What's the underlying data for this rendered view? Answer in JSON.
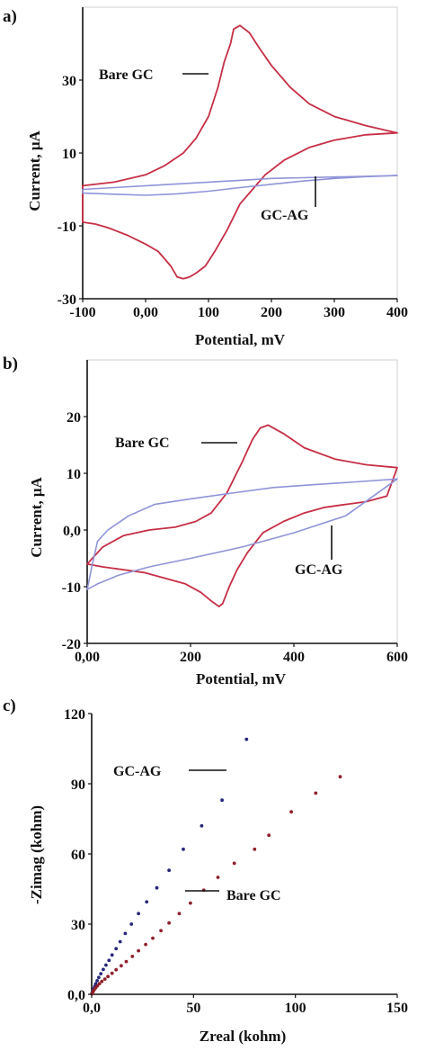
{
  "colors": {
    "bare_gc": "#c62f45",
    "gc_ag": "#8f94d8",
    "bare_gc_points": "#8f1f2a",
    "gc_ag_points": "#26277a",
    "axis": "#111111"
  },
  "chart_data": [
    {
      "panel": "a)",
      "type": "line",
      "xlabel": "Potential, mV",
      "ylabel": "Current, μA",
      "xlim": [
        -100,
        400
      ],
      "ylim": [
        -30,
        50
      ],
      "xticks": [
        "-100",
        "0,00",
        "100",
        "200",
        "300",
        "400"
      ],
      "xtick_values": [
        -100,
        0,
        100,
        200,
        300,
        400
      ],
      "yticks": [
        "30",
        "10",
        "-10",
        "-30"
      ],
      "ytick_values": [
        30,
        10,
        -10,
        -30
      ],
      "annotations": [
        {
          "text": "Bare GC",
          "series": "Bare GC",
          "target": [
            120,
            45
          ]
        },
        {
          "text": "GC-AG",
          "series": "GC-AG",
          "target": [
            260,
            0.5
          ]
        }
      ],
      "series": [
        {
          "name": "Bare GC",
          "closed": true,
          "x": [
            -100,
            -50,
            0,
            30,
            60,
            80,
            100,
            115,
            125,
            135,
            140,
            150,
            165,
            180,
            200,
            230,
            260,
            300,
            350,
            400,
            350,
            300,
            260,
            220,
            190,
            170,
            150,
            130,
            110,
            95,
            80,
            70,
            60,
            50,
            40,
            20,
            0,
            -30,
            -60,
            -80,
            -100
          ],
          "y": [
            1,
            2,
            4,
            6.5,
            10,
            14,
            20,
            28,
            35,
            40,
            44,
            45,
            43,
            39,
            34,
            28,
            23.5,
            20,
            17.5,
            15.5,
            15,
            13.5,
            11.5,
            8,
            4,
            0,
            -4,
            -11,
            -17,
            -21,
            -23,
            -24,
            -24.5,
            -24,
            -21,
            -17,
            -15,
            -12.5,
            -10.5,
            -9.5,
            -9
          ]
        },
        {
          "name": "GC-AG",
          "closed": true,
          "x": [
            -100,
            -50,
            0,
            50,
            100,
            150,
            200,
            250,
            300,
            350,
            400,
            350,
            300,
            250,
            200,
            150,
            100,
            50,
            0,
            -50,
            -100
          ],
          "y": [
            0,
            0.5,
            1,
            1.5,
            2,
            2.5,
            3,
            3.2,
            3.4,
            3.6,
            3.8,
            3.5,
            3,
            2.3,
            1.4,
            0.5,
            -0.5,
            -1.2,
            -1.6,
            -1.3,
            -1
          ]
        }
      ]
    },
    {
      "panel": "b)",
      "type": "line",
      "xlabel": "Potential, mV",
      "ylabel": "Current, μA",
      "xlim": [
        0,
        600
      ],
      "ylim": [
        -20,
        30
      ],
      "xticks": [
        "0,00",
        "200",
        "400",
        "600"
      ],
      "xtick_values": [
        0,
        200,
        400,
        600
      ],
      "yticks": [
        "20",
        "10",
        "0,0",
        "-10",
        "-20"
      ],
      "ytick_values": [
        20,
        10,
        0,
        -10,
        -20
      ],
      "annotations": [
        {
          "text": "Bare GC",
          "series": "Bare GC",
          "target": [
            300,
            15.5
          ]
        },
        {
          "text": "GC-AG",
          "series": "GC-AG",
          "target": [
            470,
            2.5
          ]
        }
      ],
      "series": [
        {
          "name": "Bare GC",
          "closed": true,
          "x": [
            0,
            30,
            70,
            120,
            170,
            210,
            240,
            270,
            300,
            320,
            335,
            350,
            380,
            420,
            480,
            540,
            600,
            580,
            540,
            500,
            460,
            420,
            380,
            340,
            310,
            290,
            275,
            262,
            255,
            240,
            220,
            190,
            150,
            110,
            70,
            30,
            0
          ],
          "y": [
            -6,
            -3,
            -1,
            0,
            0.5,
            1.5,
            3,
            6.5,
            12,
            16,
            18,
            18.5,
            17,
            14.5,
            12.5,
            11.5,
            11,
            6,
            5,
            4.5,
            4,
            3,
            1.5,
            -0.5,
            -4,
            -7,
            -10,
            -13,
            -13.5,
            -12.5,
            -11,
            -9.5,
            -8.5,
            -7.5,
            -7,
            -6.5,
            -6
          ]
        },
        {
          "name": "GC-AG",
          "closed": true,
          "x": [
            0,
            10,
            20,
            40,
            80,
            130,
            200,
            280,
            360,
            440,
            520,
            600,
            500,
            400,
            300,
            200,
            120,
            60,
            20,
            0
          ],
          "y": [
            -10.5,
            -6,
            -2,
            0,
            2.5,
            4.5,
            5.5,
            6.5,
            7.5,
            8,
            8.5,
            9,
            2.5,
            -0.5,
            -3,
            -5,
            -6.5,
            -8,
            -9.5,
            -10.5
          ]
        }
      ]
    },
    {
      "panel": "c)",
      "type": "scatter",
      "xlabel": "Zreal (kohm)",
      "ylabel": "-Zimag (kohm)",
      "xlim": [
        0,
        150
      ],
      "ylim": [
        0,
        120
      ],
      "xticks": [
        "0,0",
        "50",
        "100",
        "150"
      ],
      "xtick_values": [
        0,
        50,
        100,
        150
      ],
      "yticks": [
        "120",
        "90",
        "60",
        "30",
        "0,0"
      ],
      "ytick_values": [
        120,
        90,
        60,
        30,
        0
      ],
      "annotations": [
        {
          "text": "GC-AG",
          "series": "GC-AG",
          "target": [
            63,
            109
          ]
        },
        {
          "text": "Bare GC",
          "series": "Bare GC",
          "target": [
            36,
            47
          ]
        }
      ],
      "series": [
        {
          "name": "GC-AG",
          "x": [
            0.1,
            0.3,
            0.6,
            1,
            1.5,
            2,
            2.7,
            3.5,
            4.5,
            5.7,
            7,
            8.5,
            10,
            12,
            14,
            16.5,
            19.5,
            23,
            27,
            32,
            38,
            45,
            54,
            64,
            76
          ],
          "y": [
            0.3,
            0.8,
            1.5,
            2.4,
            3.4,
            4.5,
            5.8,
            7.2,
            8.8,
            10.6,
            12.5,
            14.5,
            16.8,
            19.5,
            22.5,
            26,
            30,
            34.5,
            39.5,
            45.5,
            53,
            62,
            72,
            83,
            109
          ]
        },
        {
          "name": "Bare GC",
          "x": [
            0.1,
            0.4,
            0.8,
            1.3,
            2,
            2.8,
            3.8,
            5,
            6.5,
            8,
            10,
            12,
            14.5,
            17,
            20,
            23,
            26.5,
            30,
            34,
            38,
            43,
            48.5,
            55,
            62,
            70,
            80,
            87,
            98,
            110,
            122
          ],
          "y": [
            0.2,
            0.7,
            1.3,
            2,
            2.8,
            3.6,
            4.5,
            5.5,
            6.5,
            7.6,
            9,
            10.5,
            12.2,
            14,
            16.2,
            18.6,
            21.3,
            24,
            27.2,
            30.5,
            34.5,
            39,
            44.5,
            50,
            56,
            62,
            68,
            78,
            86,
            93
          ]
        }
      ]
    }
  ]
}
